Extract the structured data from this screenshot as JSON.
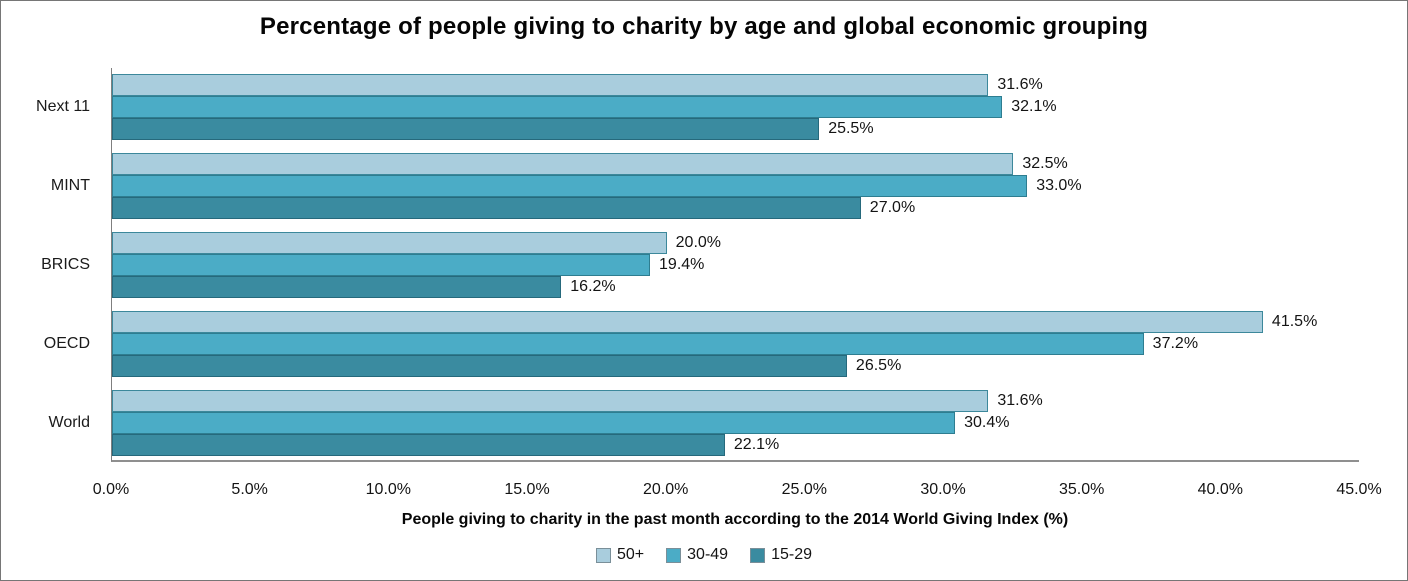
{
  "chart_data": {
    "type": "bar",
    "orientation": "horizontal",
    "title": "Percentage of people giving to charity by age and  global economic grouping",
    "categories": [
      "Next 11",
      "MINT",
      "BRICS",
      "OECD",
      "World"
    ],
    "series": [
      {
        "name": "50+",
        "color": "#A9CDDD",
        "border_color": "#3c889b",
        "values": [
          31.6,
          32.5,
          20.0,
          41.5,
          31.6
        ]
      },
      {
        "name": "30-49",
        "color": "#4BACC6",
        "border_color": "#2e7d90",
        "values": [
          32.1,
          33.0,
          19.4,
          37.2,
          30.4
        ]
      },
      {
        "name": "15-29",
        "color": "#3A8BA0",
        "border_color": "#26697c",
        "values": [
          25.5,
          27.0,
          16.2,
          26.5,
          22.1
        ]
      }
    ],
    "data_label_suffix": "%",
    "xlabel": "People giving to charity in the past month according to the 2014 World Giving Index (%)",
    "xlim": [
      0,
      45
    ],
    "xticks": [
      "0.0%",
      "5.0%",
      "10.0%",
      "15.0%",
      "20.0%",
      "25.0%",
      "30.0%",
      "35.0%",
      "40.0%",
      "45.0%"
    ],
    "grid": false,
    "legend_position": "bottom"
  }
}
